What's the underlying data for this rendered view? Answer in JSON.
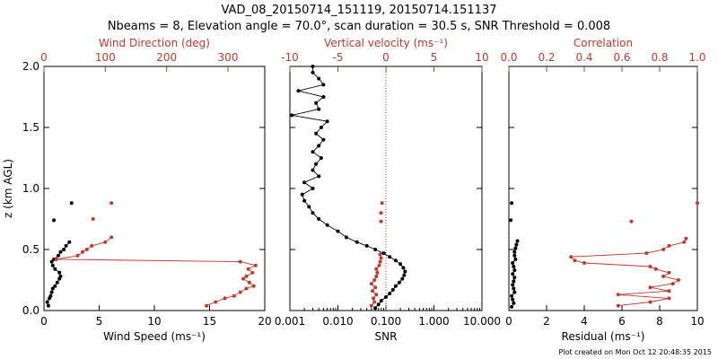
{
  "header": {
    "title_line1": "VAD_08_20150714_151119, 20150714.151137",
    "title_line2": "Nbeams = 8, Elevation angle = 70.0°, scan duration = 30.5 s, SNR Threshold = 0.008"
  },
  "footer": "Plot created on Mon Oct 12 20:48:35 2015",
  "colors": {
    "primary": "#000000",
    "secondary": "#c0392b"
  },
  "chart_data": [
    {
      "type": "scatter",
      "ylabel": "z (km AGL)",
      "ylim": [
        0,
        2.0
      ],
      "yticks": [
        "0.0",
        "0.5",
        "1.0",
        "1.5",
        "2.0"
      ],
      "bottom_axis": {
        "label": "Wind Speed (ms⁻¹)",
        "lim": [
          0,
          20
        ],
        "ticks": [
          "0",
          "5",
          "10",
          "15",
          "20"
        ]
      },
      "top_axis": {
        "label": "Wind Direction (deg)",
        "lim": [
          0,
          360
        ],
        "ticks": [
          "0",
          "100",
          "200",
          "300"
        ]
      },
      "series": [
        {
          "axis": "bottom",
          "color": "#000000",
          "connected": true,
          "z": [
            0.04,
            0.07,
            0.1,
            0.12,
            0.15,
            0.18,
            0.2,
            0.23,
            0.26,
            0.28,
            0.31,
            0.34,
            0.37,
            0.4,
            0.42,
            0.45,
            0.48,
            0.5,
            0.53,
            0.56
          ],
          "values": [
            0.4,
            0.3,
            0.5,
            0.6,
            0.7,
            0.8,
            1.0,
            1.2,
            1.4,
            1.5,
            1.4,
            1.0,
            0.8,
            0.7,
            0.9,
            1.3,
            1.5,
            1.8,
            2.0,
            2.3
          ]
        },
        {
          "axis": "bottom",
          "color": "#000000",
          "connected": false,
          "z": [
            0.88,
            0.74
          ],
          "values": [
            2.5,
            0.9
          ]
        },
        {
          "axis": "top",
          "color": "#c0392b",
          "connected": true,
          "z": [
            0.04,
            0.07,
            0.1,
            0.12,
            0.15,
            0.18,
            0.2,
            0.23,
            0.26,
            0.28,
            0.31,
            0.34,
            0.37,
            0.4,
            0.42,
            0.45,
            0.48,
            0.5,
            0.53,
            0.56,
            0.6
          ],
          "values": [
            265,
            280,
            295,
            310,
            320,
            330,
            342,
            335,
            325,
            330,
            340,
            333,
            345,
            320,
            20,
            55,
            63,
            70,
            78,
            100,
            110
          ]
        },
        {
          "axis": "top",
          "color": "#c0392b",
          "connected": false,
          "z": [
            0.88,
            0.75
          ],
          "values": [
            110,
            80
          ]
        }
      ]
    },
    {
      "type": "scatter",
      "ylim": [
        0,
        2.0
      ],
      "bottom_axis": {
        "label": "SNR",
        "scale": "log",
        "lim": [
          0.001,
          10
        ],
        "ticks": [
          "0.001",
          "0.010",
          "0.100",
          "1.000",
          "10.000"
        ]
      },
      "top_axis": {
        "label": "Vertical velocity (ms⁻¹)",
        "lim": [
          -10,
          10
        ],
        "ticks": [
          "-10",
          "-5",
          "0",
          "5",
          "10"
        ]
      },
      "reference_line": {
        "axis": "top",
        "value": 0,
        "style": "dotted",
        "color": "#c0392b"
      },
      "series": [
        {
          "axis": "bottom",
          "color": "#000000",
          "connected": true,
          "z": [
            0.02,
            0.05,
            0.08,
            0.11,
            0.14,
            0.17,
            0.2,
            0.23,
            0.26,
            0.29,
            0.32,
            0.35,
            0.38,
            0.41,
            0.44,
            0.47,
            0.5,
            0.53,
            0.56,
            0.6,
            0.65,
            0.7,
            0.75,
            0.8,
            0.85,
            0.9,
            0.95,
            1.0,
            1.05,
            1.1,
            1.15,
            1.2,
            1.25,
            1.3,
            1.35,
            1.4,
            1.45,
            1.5,
            1.55,
            1.6,
            1.65,
            1.7,
            1.75,
            1.8,
            1.85,
            1.9,
            1.95,
            2.0
          ],
          "values": [
            0.06,
            0.07,
            0.08,
            0.1,
            0.12,
            0.14,
            0.16,
            0.19,
            0.22,
            0.24,
            0.25,
            0.23,
            0.2,
            0.16,
            0.12,
            0.09,
            0.06,
            0.04,
            0.025,
            0.015,
            0.01,
            0.006,
            0.004,
            0.003,
            0.0025,
            0.002,
            0.0018,
            0.003,
            0.002,
            0.004,
            0.003,
            0.0035,
            0.0045,
            0.003,
            0.004,
            0.005,
            0.0035,
            0.0045,
            0.006,
            0.0011,
            0.004,
            0.0035,
            0.005,
            0.0015,
            0.005,
            0.004,
            0.003,
            0.003
          ]
        },
        {
          "axis": "top",
          "color": "#c0392b",
          "connected": true,
          "z": [
            0.04,
            0.07,
            0.1,
            0.13,
            0.16,
            0.19,
            0.22,
            0.25,
            0.28,
            0.31,
            0.34,
            0.37,
            0.4,
            0.43,
            0.46
          ],
          "values": [
            -1.5,
            -1.2,
            -1.3,
            -1.0,
            -1.4,
            -1.1,
            -1.5,
            -1.2,
            -1.0,
            -0.9,
            -1.0,
            -0.7,
            -0.6,
            -0.5,
            -0.6
          ]
        },
        {
          "axis": "top",
          "color": "#c0392b",
          "connected": false,
          "z": [
            0.88,
            0.8,
            0.73
          ],
          "values": [
            -0.4,
            -0.5,
            -0.5
          ]
        }
      ]
    },
    {
      "type": "scatter",
      "ylim": [
        0,
        2.0
      ],
      "bottom_axis": {
        "label": "Residual (ms⁻¹)",
        "lim": [
          0,
          10
        ],
        "ticks": [
          "0",
          "2",
          "4",
          "6",
          "8",
          "10"
        ]
      },
      "top_axis": {
        "label": "Correlation",
        "lim": [
          0.0,
          1.0
        ],
        "ticks": [
          "0.0",
          "0.2",
          "0.4",
          "0.6",
          "0.8",
          "1.0"
        ]
      },
      "series": [
        {
          "axis": "bottom",
          "color": "#000000",
          "connected": true,
          "z": [
            0.03,
            0.06,
            0.09,
            0.12,
            0.15,
            0.18,
            0.21,
            0.24,
            0.27,
            0.3,
            0.33,
            0.36,
            0.39,
            0.42,
            0.45,
            0.48,
            0.51,
            0.54,
            0.57
          ],
          "values": [
            0.15,
            0.25,
            0.2,
            0.15,
            0.3,
            0.25,
            0.2,
            0.25,
            0.3,
            0.2,
            0.3,
            0.25,
            0.2,
            0.35,
            0.3,
            0.3,
            0.35,
            0.4,
            0.45
          ]
        },
        {
          "axis": "bottom",
          "color": "#000000",
          "connected": false,
          "z": [
            0.88,
            0.74
          ],
          "values": [
            0.15,
            0.1
          ]
        },
        {
          "axis": "top",
          "color": "#c0392b",
          "connected": true,
          "z": [
            0.04,
            0.07,
            0.1,
            0.13,
            0.16,
            0.19,
            0.22,
            0.25,
            0.28,
            0.31,
            0.34,
            0.36,
            0.39,
            0.41,
            0.44,
            0.47,
            0.5,
            0.53,
            0.56,
            0.59
          ],
          "values": [
            0.58,
            0.75,
            0.85,
            0.58,
            0.85,
            0.75,
            0.87,
            0.9,
            0.82,
            0.85,
            0.78,
            0.75,
            0.4,
            0.35,
            0.33,
            0.73,
            0.82,
            0.85,
            0.93,
            0.94
          ]
        },
        {
          "axis": "top",
          "color": "#c0392b",
          "connected": false,
          "z": [
            0.88,
            0.73
          ],
          "values": [
            1.0,
            0.65
          ]
        }
      ]
    }
  ]
}
